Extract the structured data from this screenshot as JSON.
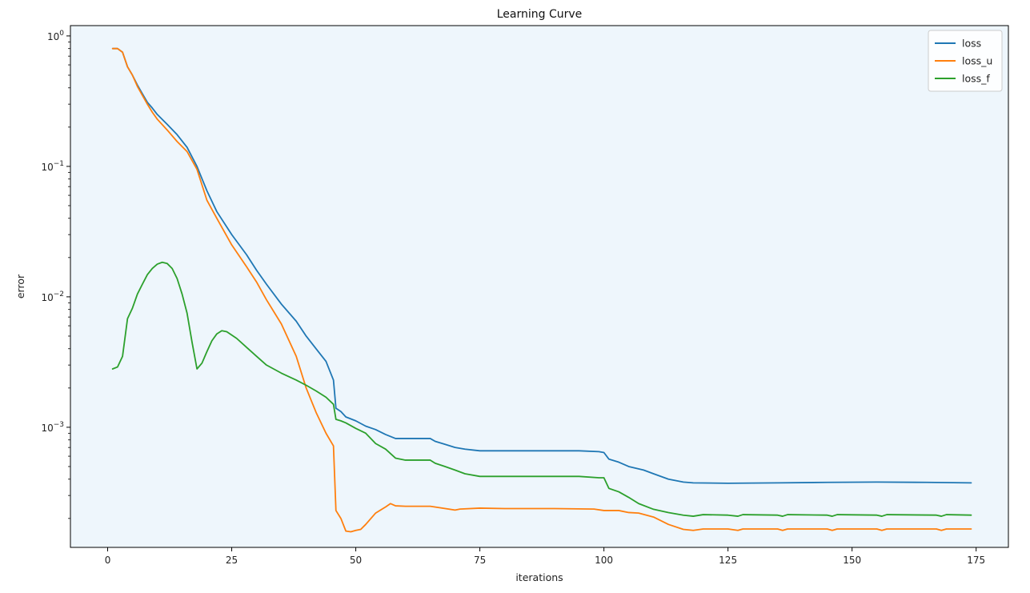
{
  "chart_data": {
    "type": "line",
    "title": "Learning Curve",
    "xlabel": "iterations",
    "ylabel": "error",
    "y_scale": "log",
    "xlim": [
      -7.5,
      181.5
    ],
    "ylim": [
      0.00012,
      1.2
    ],
    "x_ticks": [
      0,
      25,
      50,
      75,
      100,
      125,
      150,
      175
    ],
    "x_tick_labels": [
      "0",
      "25",
      "50",
      "75",
      "100",
      "125",
      "150",
      "175"
    ],
    "y_ticks": [
      0.001,
      0.01,
      0.1,
      1
    ],
    "y_tick_labels": [
      {
        "base": "10",
        "exp": "−3"
      },
      {
        "base": "10",
        "exp": "−2"
      },
      {
        "base": "10",
        "exp": "−1"
      },
      {
        "base": "10",
        "exp": "0"
      }
    ],
    "legend_position": "top-right",
    "grid": false,
    "plot_background": "#eef6fc",
    "series": [
      {
        "name": "loss",
        "color": "#1f77b4",
        "points": [
          [
            1,
            0.8
          ],
          [
            2,
            0.8
          ],
          [
            3,
            0.75
          ],
          [
            4,
            0.58
          ],
          [
            5,
            0.5
          ],
          [
            6,
            0.42
          ],
          [
            7,
            0.36
          ],
          [
            8,
            0.31
          ],
          [
            9,
            0.28
          ],
          [
            10,
            0.25
          ],
          [
            12,
            0.21
          ],
          [
            14,
            0.175
          ],
          [
            16,
            0.14
          ],
          [
            18,
            0.1
          ],
          [
            20,
            0.065
          ],
          [
            22,
            0.045
          ],
          [
            25,
            0.03
          ],
          [
            28,
            0.021
          ],
          [
            30,
            0.016
          ],
          [
            32,
            0.0125
          ],
          [
            35,
            0.0088
          ],
          [
            38,
            0.0065
          ],
          [
            40,
            0.005
          ],
          [
            42,
            0.004
          ],
          [
            44,
            0.0032
          ],
          [
            45.5,
            0.0023
          ],
          [
            46,
            0.0014
          ],
          [
            47,
            0.00132
          ],
          [
            48,
            0.0012
          ],
          [
            50,
            0.00112
          ],
          [
            52,
            0.00102
          ],
          [
            54,
            0.00096
          ],
          [
            56,
            0.00088
          ],
          [
            58,
            0.00082
          ],
          [
            60,
            0.00082
          ],
          [
            65,
            0.00082
          ],
          [
            66,
            0.00078
          ],
          [
            68,
            0.00074
          ],
          [
            70,
            0.0007
          ],
          [
            72,
            0.00068
          ],
          [
            75,
            0.00066
          ],
          [
            85,
            0.00066
          ],
          [
            95,
            0.00066
          ],
          [
            99,
            0.00065
          ],
          [
            100,
            0.00064
          ],
          [
            101,
            0.00057
          ],
          [
            103,
            0.00054
          ],
          [
            105,
            0.0005
          ],
          [
            108,
            0.00047
          ],
          [
            110,
            0.00044
          ],
          [
            113,
            0.0004
          ],
          [
            116,
            0.00038
          ],
          [
            118,
            0.000375
          ],
          [
            125,
            0.000372
          ],
          [
            135,
            0.000375
          ],
          [
            145,
            0.000378
          ],
          [
            155,
            0.00038
          ],
          [
            165,
            0.000378
          ],
          [
            174,
            0.000375
          ]
        ]
      },
      {
        "name": "loss_u",
        "color": "#ff7f0e",
        "points": [
          [
            1,
            0.8
          ],
          [
            2,
            0.8
          ],
          [
            3,
            0.75
          ],
          [
            4,
            0.58
          ],
          [
            5,
            0.5
          ],
          [
            6,
            0.41
          ],
          [
            7,
            0.35
          ],
          [
            8,
            0.3
          ],
          [
            9,
            0.26
          ],
          [
            10,
            0.23
          ],
          [
            12,
            0.19
          ],
          [
            14,
            0.155
          ],
          [
            16,
            0.13
          ],
          [
            18,
            0.095
          ],
          [
            20,
            0.055
          ],
          [
            22,
            0.04
          ],
          [
            25,
            0.025
          ],
          [
            28,
            0.017
          ],
          [
            30,
            0.013
          ],
          [
            32,
            0.0095
          ],
          [
            35,
            0.0062
          ],
          [
            38,
            0.0035
          ],
          [
            40,
            0.002
          ],
          [
            42,
            0.0013
          ],
          [
            44,
            0.0009
          ],
          [
            45.5,
            0.00072
          ],
          [
            46,
            0.00023
          ],
          [
            47,
            0.0002
          ],
          [
            48,
            0.00016
          ],
          [
            49,
            0.000158
          ],
          [
            50,
            0.000162
          ],
          [
            51,
            0.000165
          ],
          [
            52,
            0.00018
          ],
          [
            54,
            0.00022
          ],
          [
            56,
            0.000245
          ],
          [
            57,
            0.00026
          ],
          [
            58,
            0.00025
          ],
          [
            60,
            0.000248
          ],
          [
            65,
            0.000248
          ],
          [
            70,
            0.000232
          ],
          [
            71,
            0.000236
          ],
          [
            75,
            0.00024
          ],
          [
            80,
            0.000238
          ],
          [
            90,
            0.000238
          ],
          [
            98,
            0.000236
          ],
          [
            100,
            0.00023
          ],
          [
            103,
            0.00023
          ],
          [
            105,
            0.000222
          ],
          [
            107,
            0.00022
          ],
          [
            110,
            0.000205
          ],
          [
            113,
            0.00018
          ],
          [
            116,
            0.000165
          ],
          [
            118,
            0.000162
          ],
          [
            120,
            0.000166
          ],
          [
            125,
            0.000166
          ],
          [
            127,
            0.000162
          ],
          [
            128,
            0.000166
          ],
          [
            135,
            0.000166
          ],
          [
            136,
            0.000162
          ],
          [
            137,
            0.000166
          ],
          [
            145,
            0.000166
          ],
          [
            146,
            0.000162
          ],
          [
            147,
            0.000166
          ],
          [
            155,
            0.000166
          ],
          [
            156,
            0.000162
          ],
          [
            157,
            0.000166
          ],
          [
            167,
            0.000166
          ],
          [
            168,
            0.000162
          ],
          [
            169,
            0.000166
          ],
          [
            174,
            0.000166
          ]
        ]
      },
      {
        "name": "loss_f",
        "color": "#2ca02c",
        "points": [
          [
            1,
            0.0028
          ],
          [
            2,
            0.0029
          ],
          [
            3,
            0.0035
          ],
          [
            4,
            0.0068
          ],
          [
            5,
            0.0082
          ],
          [
            6,
            0.0105
          ],
          [
            7,
            0.0125
          ],
          [
            8,
            0.0148
          ],
          [
            9,
            0.0165
          ],
          [
            10,
            0.0178
          ],
          [
            11,
            0.0184
          ],
          [
            12,
            0.018
          ],
          [
            13,
            0.0165
          ],
          [
            14,
            0.0138
          ],
          [
            15,
            0.0105
          ],
          [
            16,
            0.0075
          ],
          [
            17,
            0.0045
          ],
          [
            18,
            0.0028
          ],
          [
            19,
            0.0031
          ],
          [
            20,
            0.0038
          ],
          [
            21,
            0.0046
          ],
          [
            22,
            0.0052
          ],
          [
            23,
            0.0055
          ],
          [
            24,
            0.0054
          ],
          [
            26,
            0.0048
          ],
          [
            28,
            0.0041
          ],
          [
            30,
            0.0035
          ],
          [
            32,
            0.003
          ],
          [
            35,
            0.0026
          ],
          [
            38,
            0.0023
          ],
          [
            40,
            0.0021
          ],
          [
            42,
            0.0019
          ],
          [
            44,
            0.0017
          ],
          [
            45.5,
            0.0015
          ],
          [
            46,
            0.00115
          ],
          [
            47,
            0.00112
          ],
          [
            48,
            0.00108
          ],
          [
            50,
            0.00098
          ],
          [
            52,
            0.0009
          ],
          [
            54,
            0.00075
          ],
          [
            56,
            0.00068
          ],
          [
            58,
            0.00058
          ],
          [
            60,
            0.00056
          ],
          [
            65,
            0.00056
          ],
          [
            66,
            0.00053
          ],
          [
            68,
            0.0005
          ],
          [
            70,
            0.00047
          ],
          [
            72,
            0.00044
          ],
          [
            75,
            0.00042
          ],
          [
            85,
            0.00042
          ],
          [
            95,
            0.00042
          ],
          [
            99,
            0.00041
          ],
          [
            100,
            0.00041
          ],
          [
            101,
            0.00034
          ],
          [
            103,
            0.00032
          ],
          [
            105,
            0.00029
          ],
          [
            107,
            0.00026
          ],
          [
            110,
            0.000235
          ],
          [
            113,
            0.000222
          ],
          [
            116,
            0.000212
          ],
          [
            118,
            0.000208
          ],
          [
            120,
            0.000214
          ],
          [
            125,
            0.000212
          ],
          [
            127,
            0.000208
          ],
          [
            128,
            0.000214
          ],
          [
            135,
            0.000212
          ],
          [
            136,
            0.000208
          ],
          [
            137,
            0.000214
          ],
          [
            145,
            0.000212
          ],
          [
            146,
            0.000208
          ],
          [
            147,
            0.000214
          ],
          [
            155,
            0.000212
          ],
          [
            156,
            0.000208
          ],
          [
            157,
            0.000214
          ],
          [
            167,
            0.000212
          ],
          [
            168,
            0.000208
          ],
          [
            169,
            0.000214
          ],
          [
            174,
            0.000212
          ]
        ]
      }
    ]
  }
}
